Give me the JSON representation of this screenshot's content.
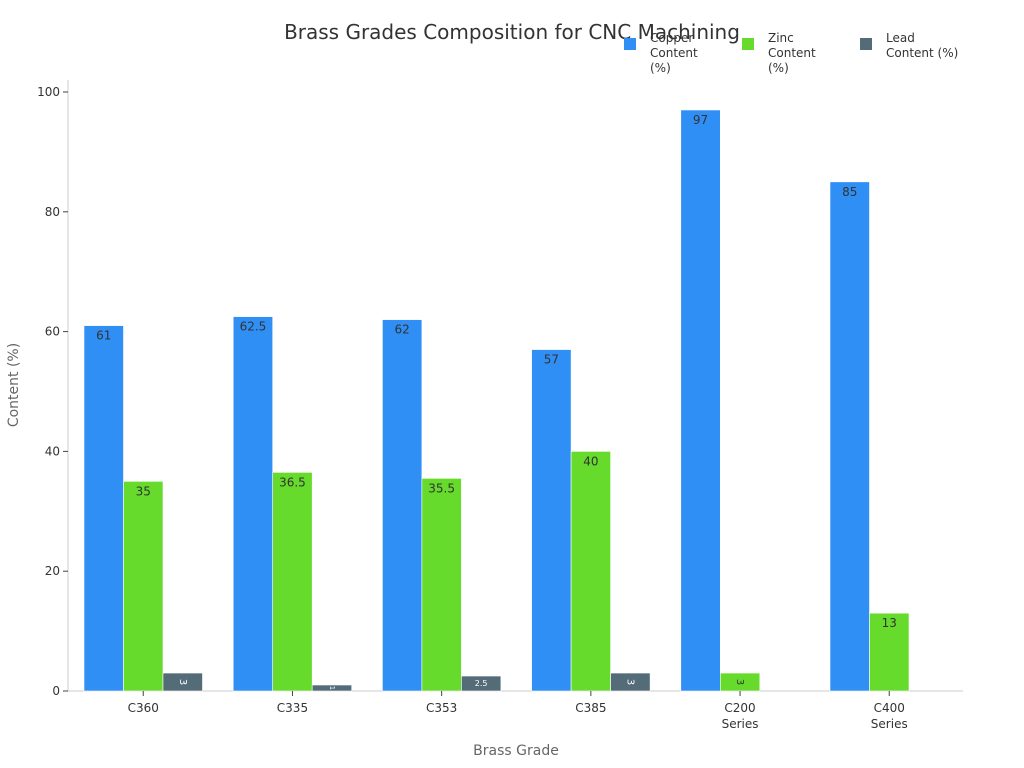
{
  "chart_data": {
    "type": "bar",
    "title": "Brass Grades Composition for CNC Machining",
    "xlabel": "Brass Grade",
    "ylabel": "Content (%)",
    "ylim": [
      0,
      100
    ],
    "yticks": [
      0,
      20,
      40,
      60,
      80,
      100
    ],
    "grid": false,
    "legend_position": "top-right",
    "categories": [
      "C360",
      "C335",
      "C353",
      "C385",
      "C200\nSeries",
      "C400\nSeries"
    ],
    "series": [
      {
        "name": "Copper\nContent (%)",
        "color": "#2f8ff5",
        "values": [
          61,
          62.5,
          62,
          57,
          97,
          85
        ]
      },
      {
        "name": "Zinc\nContent (%)",
        "color": "#66db2b",
        "values": [
          35,
          36.5,
          35.5,
          40,
          3,
          13
        ]
      },
      {
        "name": "Lead\nContent (%)",
        "color": "#546b78",
        "values": [
          3,
          1,
          2.5,
          3,
          null,
          null
        ]
      }
    ]
  }
}
